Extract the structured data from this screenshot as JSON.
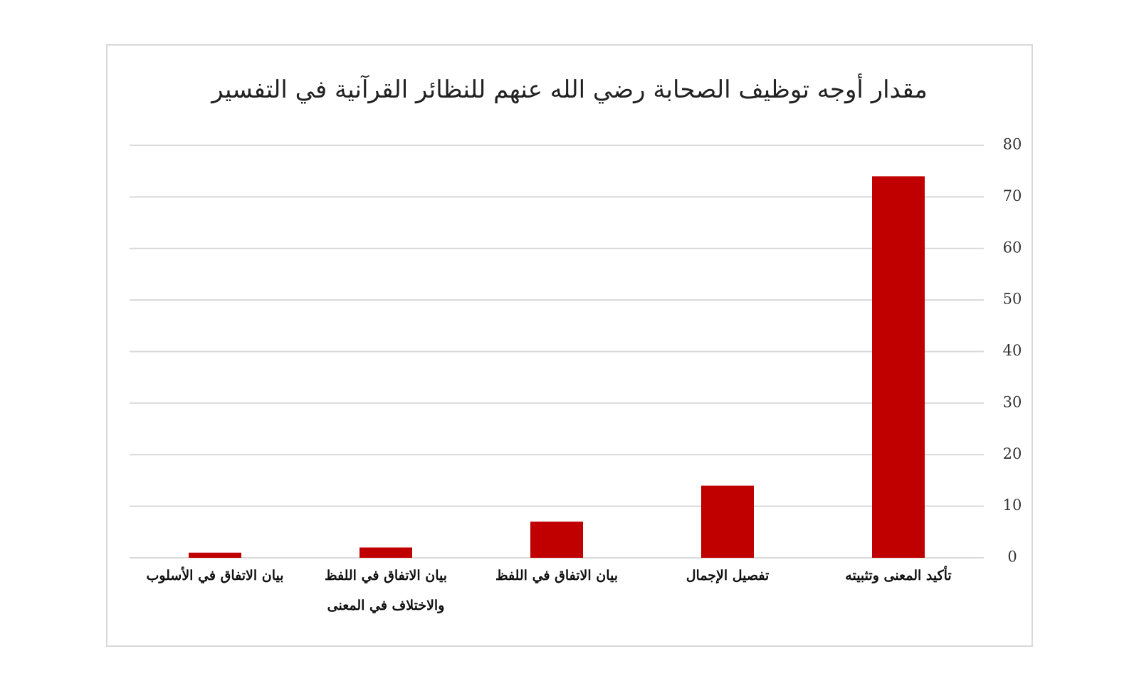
{
  "chart_data": {
    "type": "bar",
    "title": "مقدار أوجه توظيف الصحابة رضي الله عنهم للنظائر القرآنية في التفسير",
    "categories": [
      "تأكيد المعنى وتثبيته",
      "تفصيل الإجمال",
      "بيان الاتفاق في اللفظ",
      "بيان الاتفاق في اللفظ والاختلاف في المعنى",
      "بيان الاتفاق في الأسلوب"
    ],
    "values": [
      74,
      14,
      7,
      2,
      1
    ],
    "color": "#c00000",
    "ylim": [
      0,
      80
    ],
    "yticks": [
      0,
      10,
      20,
      30,
      40,
      50,
      60,
      70,
      80
    ],
    "grid": true,
    "y_axis_side": "right",
    "category_direction": "rtl"
  }
}
